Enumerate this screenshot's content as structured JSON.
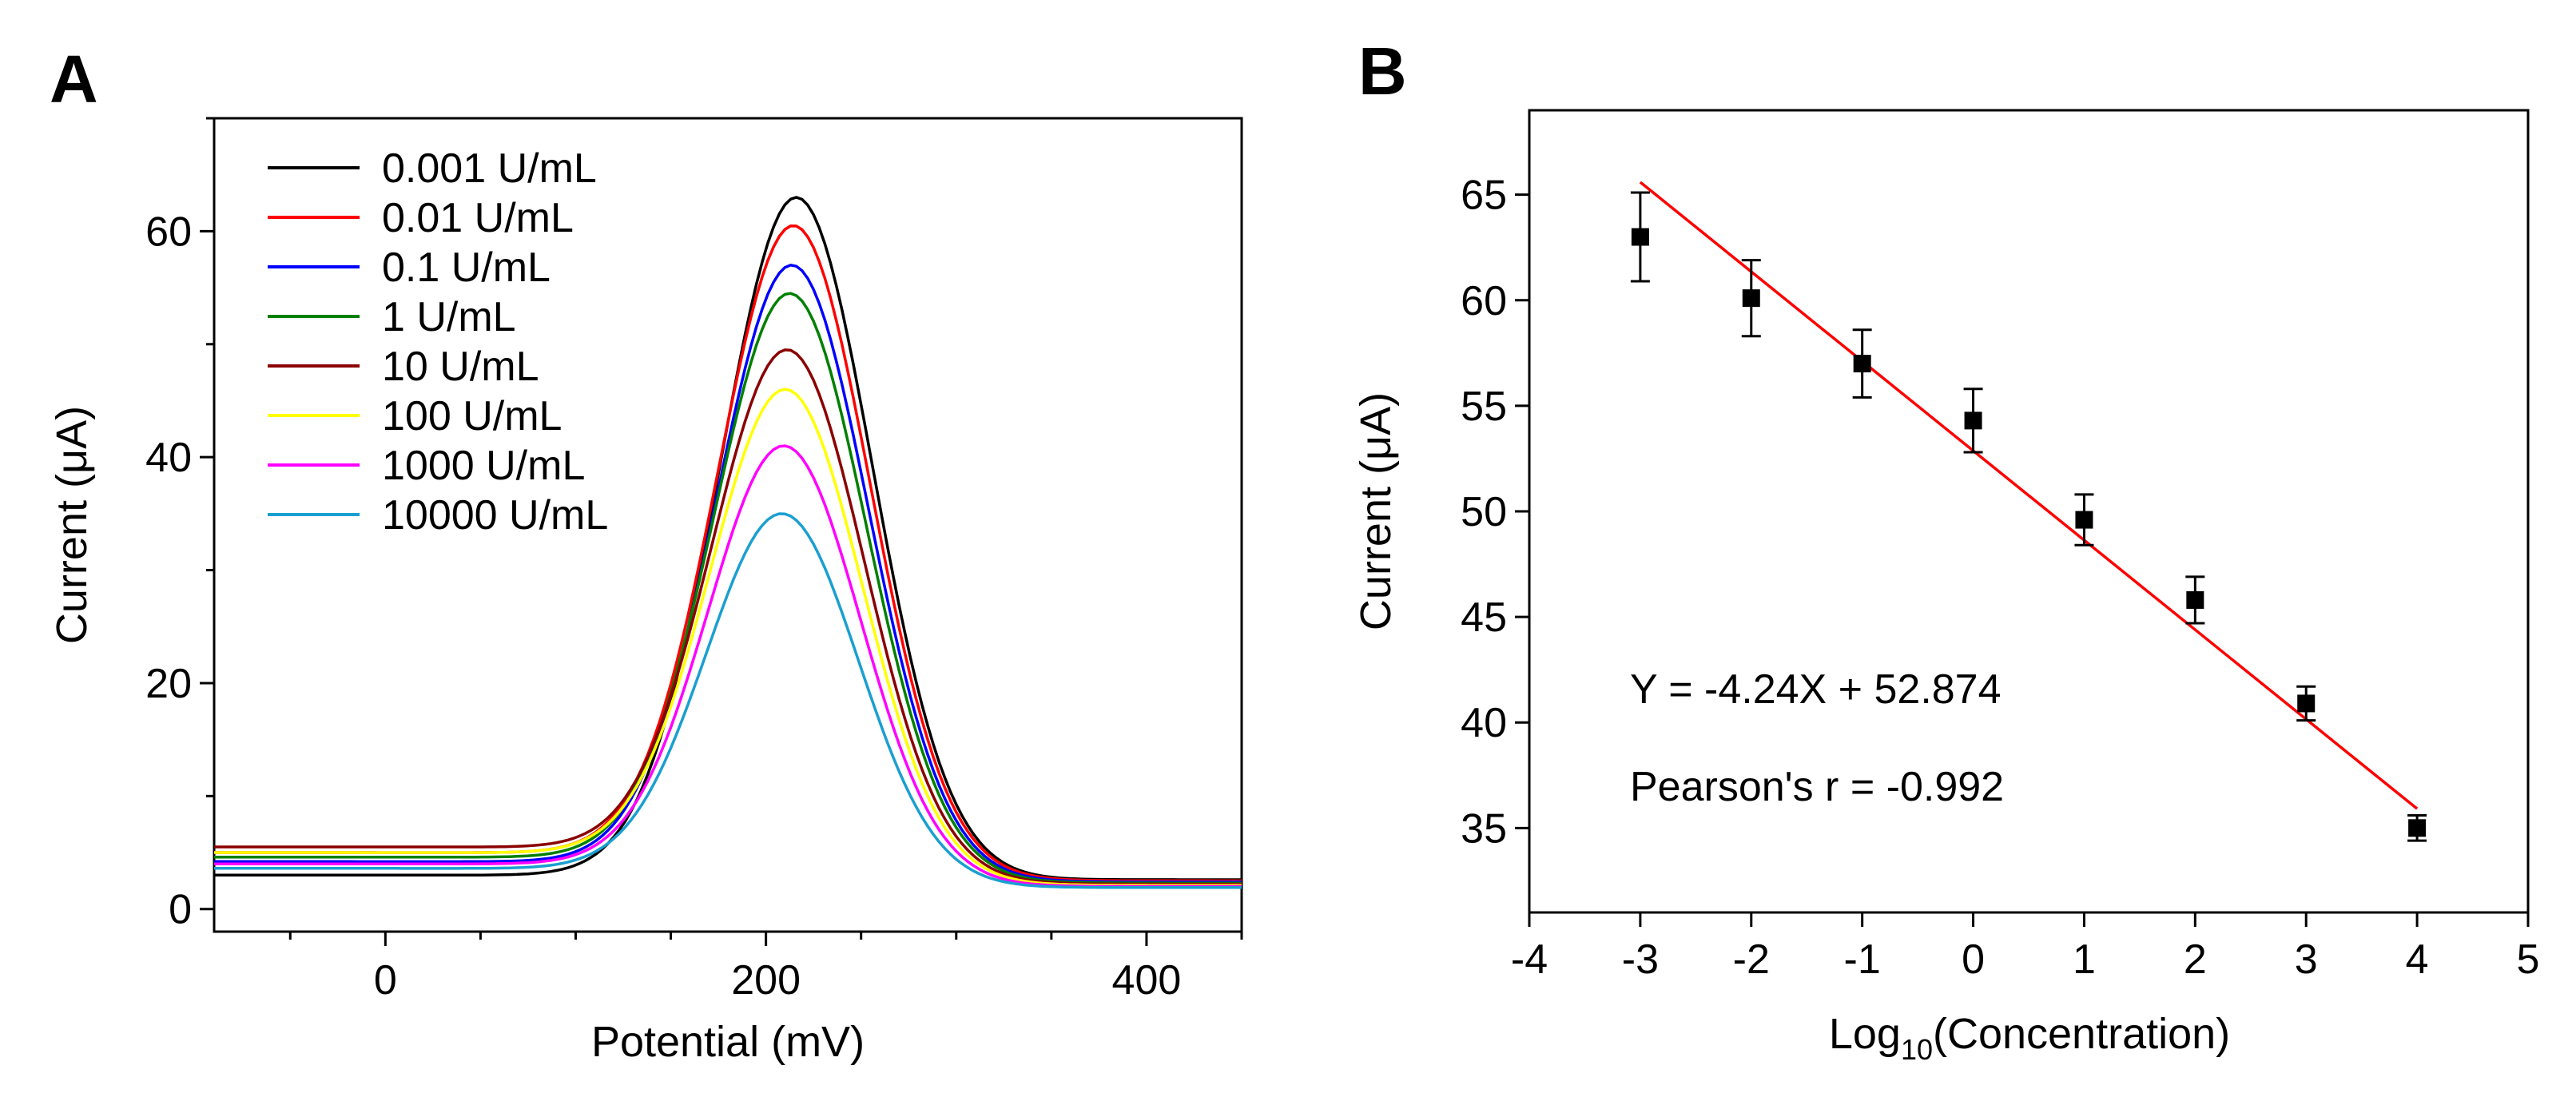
{
  "panels": {
    "a_letter": "A",
    "b_letter": "B"
  },
  "chart_data": [
    {
      "id": "A",
      "type": "line",
      "title": "",
      "xlabel": "Potential (mV)",
      "ylabel": "Current (μA)",
      "xlim": [
        -90,
        450
      ],
      "ylim": [
        -2,
        70
      ],
      "xticks": [
        0,
        200,
        400
      ],
      "xtick_labels": [
        "0",
        "200",
        "400"
      ],
      "yticks": [
        0,
        20,
        40,
        60
      ],
      "ytick_labels": [
        "0",
        "20",
        "40",
        "60"
      ],
      "legend_position": "top-left",
      "series": [
        {
          "name": "0.001 U/mL",
          "color": "#000000",
          "peak_x": 216,
          "peak_y": 63.0,
          "baseline_left": 3.0,
          "baseline_right": 2.6
        },
        {
          "name": "0.01 U/mL",
          "color": "#ff0000",
          "peak_x": 215,
          "peak_y": 60.5,
          "baseline_left": 5.0,
          "baseline_right": 2.5
        },
        {
          "name": "0.1 U/mL",
          "color": "#0000ff",
          "peak_x": 214,
          "peak_y": 57.0,
          "baseline_left": 4.2,
          "baseline_right": 2.4
        },
        {
          "name": "1 U/mL",
          "color": "#008000",
          "peak_x": 213,
          "peak_y": 54.5,
          "baseline_left": 4.6,
          "baseline_right": 2.3
        },
        {
          "name": "10 U/mL",
          "color": "#8b0000",
          "peak_x": 212,
          "peak_y": 49.5,
          "baseline_left": 5.5,
          "baseline_right": 2.2
        },
        {
          "name": "100 U/mL",
          "color": "#ffff00",
          "peak_x": 211,
          "peak_y": 46.0,
          "baseline_left": 5.0,
          "baseline_right": 2.1
        },
        {
          "name": "1000 U/mL",
          "color": "#ff00ff",
          "peak_x": 210,
          "peak_y": 41.0,
          "baseline_left": 4.0,
          "baseline_right": 2.0
        },
        {
          "name": "10000 U/mL",
          "color": "#1a9fd0",
          "peak_x": 209,
          "peak_y": 35.0,
          "baseline_left": 3.6,
          "baseline_right": 1.9
        }
      ]
    },
    {
      "id": "B",
      "type": "scatter",
      "title": "",
      "xlabel_main": "Log",
      "xlabel_sub": "10",
      "xlabel_rest": "(Concentration)",
      "ylabel": "Current (μA)",
      "xlim": [
        -4,
        5
      ],
      "ylim": [
        31,
        69
      ],
      "xticks": [
        -4,
        -3,
        -2,
        -1,
        0,
        1,
        2,
        3,
        4,
        5
      ],
      "xtick_labels": [
        "-4",
        "-3",
        "-2",
        "-1",
        "0",
        "1",
        "2",
        "3",
        "4",
        "5"
      ],
      "yticks": [
        35,
        40,
        45,
        50,
        55,
        60,
        65
      ],
      "ytick_labels": [
        "35",
        "40",
        "45",
        "50",
        "55",
        "60",
        "65"
      ],
      "x": [
        -3,
        -2,
        -1,
        0,
        1,
        2,
        3,
        4
      ],
      "y": [
        63.0,
        60.1,
        57.0,
        54.3,
        49.6,
        45.8,
        40.9,
        35.0
      ],
      "err": [
        2.1,
        1.8,
        1.6,
        1.5,
        1.2,
        1.1,
        0.8,
        0.6
      ],
      "fit": {
        "slope": -4.24,
        "intercept": 52.874,
        "x_range": [
          -3,
          4
        ],
        "color": "#ff0000"
      },
      "annotations": [
        "Y = -4.24X + 52.874",
        "Pearson's r = -0.992"
      ]
    }
  ]
}
